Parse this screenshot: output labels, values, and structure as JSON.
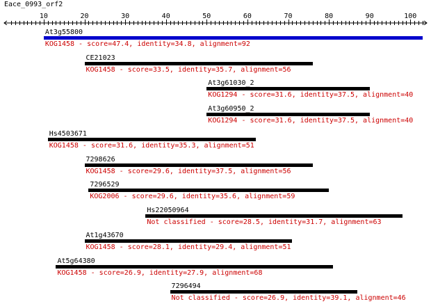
{
  "query": {
    "name": "Eace_0993_orf2"
  },
  "axis": {
    "min": 1,
    "max": 103,
    "ticks": [
      10,
      20,
      30,
      40,
      50,
      60,
      70,
      80,
      90,
      100
    ]
  },
  "colors": {
    "bar": "#000000",
    "highlight_bar": "#0000cc",
    "desc": "#cc0000",
    "axis": "#000000"
  },
  "hits": [
    {
      "name": "At3g55800",
      "start": 10,
      "end": 103,
      "desc": "KOG1458 - score=47.4, identity=34.8, alignment=92",
      "highlight": true
    },
    {
      "name": "CE21023",
      "start": 20,
      "end": 76,
      "desc": "KOG1458 - score=33.5, identity=35.7, alignment=56",
      "highlight": false
    },
    {
      "name": "At3g61030_2",
      "start": 50,
      "end": 90,
      "desc": "KOG1294 - score=31.6, identity=37.5, alignment=40",
      "highlight": false
    },
    {
      "name": "At3g60950_2",
      "start": 50,
      "end": 90,
      "desc": "KOG1294 - score=31.6, identity=37.5, alignment=40",
      "highlight": false
    },
    {
      "name": "Hs4503671",
      "start": 11,
      "end": 62,
      "desc": "KOG1458 - score=31.6, identity=35.3, alignment=51",
      "highlight": false
    },
    {
      "name": "7298626",
      "start": 20,
      "end": 76,
      "desc": "KOG1458 - score=29.6, identity=37.5, alignment=56",
      "highlight": false
    },
    {
      "name": "7296529",
      "start": 21,
      "end": 80,
      "desc": "KOG2006 - score=29.6, identity=35.6, alignment=59",
      "highlight": false
    },
    {
      "name": "Hs22050964",
      "start": 35,
      "end": 98,
      "desc": "Not classified - score=28.5, identity=31.7, alignment=63",
      "highlight": false
    },
    {
      "name": "At1g43670",
      "start": 20,
      "end": 71,
      "desc": "KOG1458 - score=28.1, identity=29.4, alignment=51",
      "highlight": false
    },
    {
      "name": "At5g64380",
      "start": 13,
      "end": 81,
      "desc": "KOG1458 - score=26.9, identity=27.9, alignment=68",
      "highlight": false
    },
    {
      "name": "7296494",
      "start": 41,
      "end": 87,
      "desc": "Not classified - score=26.9, identity=39.1, alignment=46",
      "highlight": false
    }
  ]
}
